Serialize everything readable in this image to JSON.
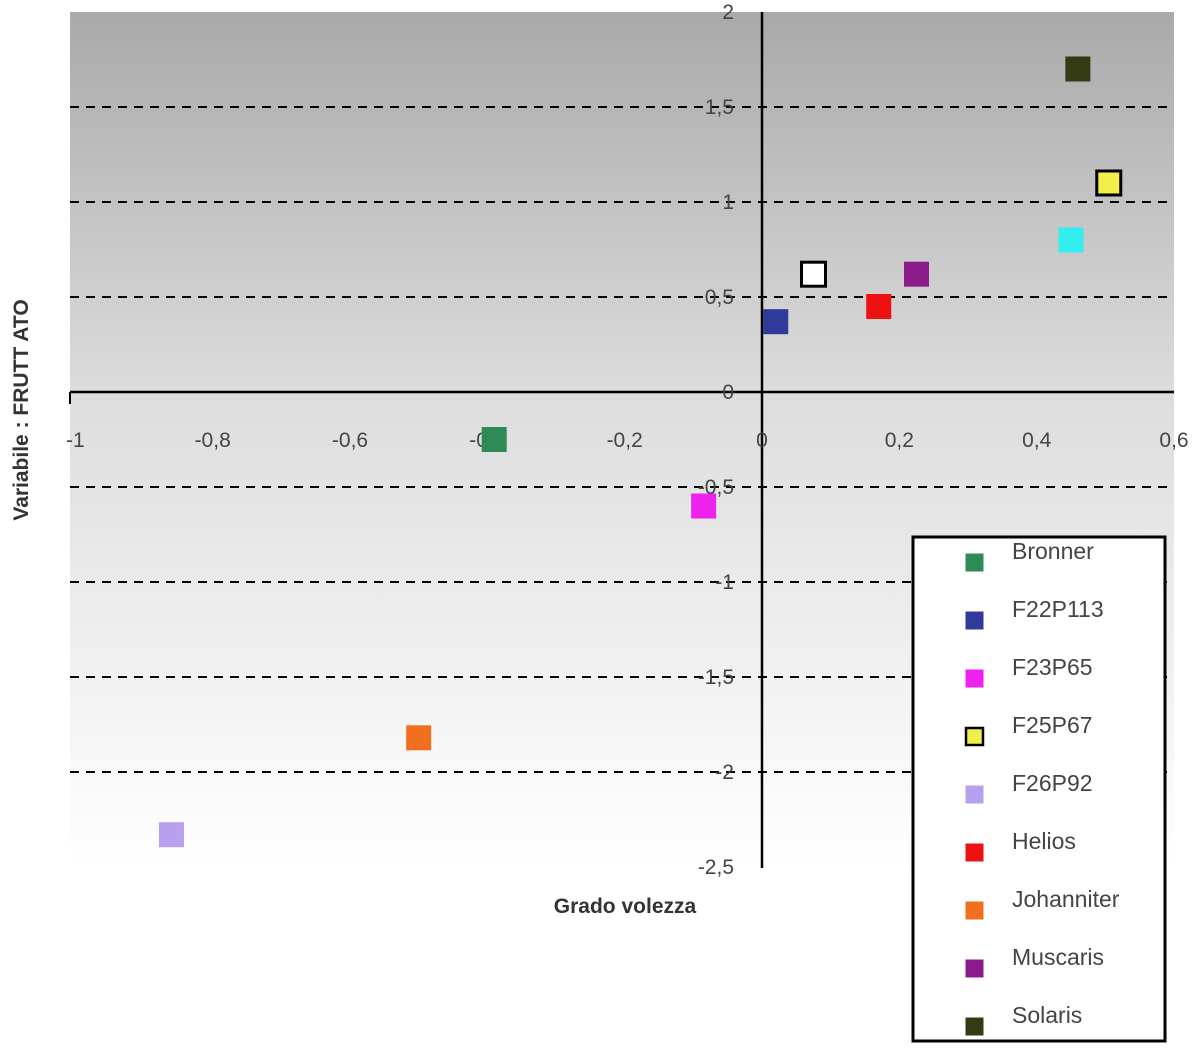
{
  "chart_data": {
    "type": "scatter",
    "xlabel": "Grado volezza",
    "ylabel": "Variabile : FRUTT ATO",
    "xlim": [
      -1,
      0.6
    ],
    "ylim": [
      -2.5,
      2
    ],
    "x_ticks": [
      "-1",
      "-0,8",
      "-0,6",
      "-0,4",
      "-0,2",
      "0",
      "0,2",
      "0,4",
      "0,6"
    ],
    "y_ticks": [
      "2",
      "1,5",
      "1",
      "0,5",
      "0",
      "-0,5",
      "-1",
      "-1,5",
      "-2",
      "-2,5"
    ],
    "x_tick_values": [
      -1,
      -0.8,
      -0.6,
      -0.4,
      -0.2,
      0,
      0.2,
      0.4,
      0.6
    ],
    "y_tick_values": [
      2,
      1.5,
      1,
      0.5,
      0,
      -0.5,
      -1,
      -1.5,
      -2,
      -2.5
    ],
    "grid": "horizontal dashed",
    "legend_position": "bottom-right",
    "series": [
      {
        "name": "Bronner",
        "color": "#2e8b57",
        "hollow": false,
        "x": -0.39,
        "y": -0.25
      },
      {
        "name": "F22P113",
        "color": "#2f3a9a",
        "hollow": false,
        "x": 0.02,
        "y": 0.37
      },
      {
        "name": "F23P65",
        "color": "#ee22ee",
        "hollow": false,
        "x": -0.085,
        "y": -0.6
      },
      {
        "name": "F25P67",
        "color": "#f2ef4a",
        "hollow": true,
        "x": 0.505,
        "y": 1.1
      },
      {
        "name": "F26P92",
        "color": "#b8a0ee",
        "hollow": false,
        "x": -0.86,
        "y": -2.33
      },
      {
        "name": "Helios",
        "color": "#ee1111",
        "hollow": false,
        "x": 0.17,
        "y": 0.45
      },
      {
        "name": "Johanniter",
        "color": "#f07020",
        "hollow": false,
        "x": -0.5,
        "y": -1.82
      },
      {
        "name": "Muscaris",
        "color": "#8b1a8b",
        "hollow": false,
        "x": 0.225,
        "y": 0.62
      },
      {
        "name": "Solaris",
        "color": "#333a14",
        "hollow": false,
        "x": 0.46,
        "y": 1.7
      },
      {
        "name": "",
        "color": "#ffffff",
        "hollow": true,
        "x": 0.075,
        "y": 0.62
      },
      {
        "name": "",
        "color": "#33eeee",
        "hollow": false,
        "x": 0.45,
        "y": 0.8
      }
    ]
  }
}
